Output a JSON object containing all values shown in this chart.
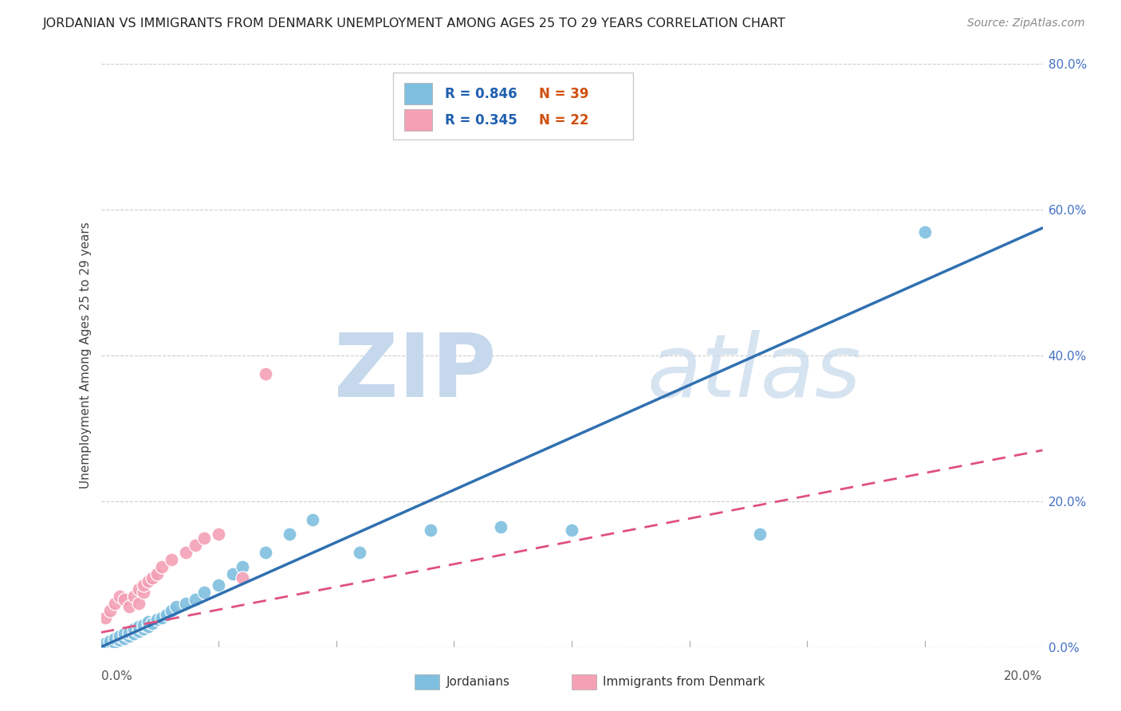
{
  "title": "JORDANIAN VS IMMIGRANTS FROM DENMARK UNEMPLOYMENT AMONG AGES 25 TO 29 YEARS CORRELATION CHART",
  "source": "Source: ZipAtlas.com",
  "ylabel": "Unemployment Among Ages 25 to 29 years",
  "xlim": [
    0.0,
    0.2
  ],
  "ylim": [
    0.0,
    0.8
  ],
  "xticks": [
    0.0,
    0.025,
    0.05,
    0.075,
    0.1,
    0.125,
    0.15,
    0.175,
    0.2
  ],
  "ytick_labels_right": [
    "0.0%",
    "20.0%",
    "40.0%",
    "60.0%",
    "80.0%"
  ],
  "yticks_right": [
    0.0,
    0.2,
    0.4,
    0.6,
    0.8
  ],
  "blue_color": "#7fbfdf",
  "pink_color": "#f4a0b5",
  "blue_line_color": "#3070b0",
  "pink_line_color": "#e05080",
  "legend_R_blue": "R = 0.846",
  "legend_N_blue": "N = 39",
  "legend_R_pink": "R = 0.345",
  "legend_N_pink": "N = 22",
  "blue_scatter_x": [
    0.001,
    0.002,
    0.003,
    0.003,
    0.004,
    0.004,
    0.005,
    0.005,
    0.006,
    0.006,
    0.007,
    0.007,
    0.008,
    0.008,
    0.009,
    0.009,
    0.01,
    0.01,
    0.011,
    0.012,
    0.013,
    0.014,
    0.015,
    0.016,
    0.018,
    0.02,
    0.022,
    0.025,
    0.028,
    0.03,
    0.035,
    0.04,
    0.045,
    0.055,
    0.07,
    0.085,
    0.1,
    0.14,
    0.175
  ],
  "blue_scatter_y": [
    0.005,
    0.008,
    0.006,
    0.012,
    0.01,
    0.015,
    0.012,
    0.018,
    0.015,
    0.02,
    0.018,
    0.025,
    0.022,
    0.028,
    0.025,
    0.03,
    0.028,
    0.035,
    0.032,
    0.038,
    0.04,
    0.045,
    0.05,
    0.055,
    0.06,
    0.065,
    0.075,
    0.085,
    0.1,
    0.11,
    0.13,
    0.155,
    0.175,
    0.13,
    0.16,
    0.165,
    0.16,
    0.155,
    0.57
  ],
  "pink_scatter_x": [
    0.001,
    0.002,
    0.003,
    0.004,
    0.005,
    0.006,
    0.007,
    0.008,
    0.008,
    0.009,
    0.009,
    0.01,
    0.011,
    0.012,
    0.013,
    0.015,
    0.018,
    0.02,
    0.022,
    0.025,
    0.03,
    0.035
  ],
  "pink_scatter_y": [
    0.04,
    0.05,
    0.06,
    0.07,
    0.065,
    0.055,
    0.07,
    0.06,
    0.08,
    0.075,
    0.085,
    0.09,
    0.095,
    0.1,
    0.11,
    0.12,
    0.13,
    0.14,
    0.15,
    0.155,
    0.095,
    0.375
  ],
  "blue_line_x": [
    0.0,
    0.2
  ],
  "blue_line_y": [
    0.0,
    0.575
  ],
  "pink_line_x": [
    0.0,
    0.2
  ],
  "pink_line_y": [
    0.02,
    0.27
  ]
}
